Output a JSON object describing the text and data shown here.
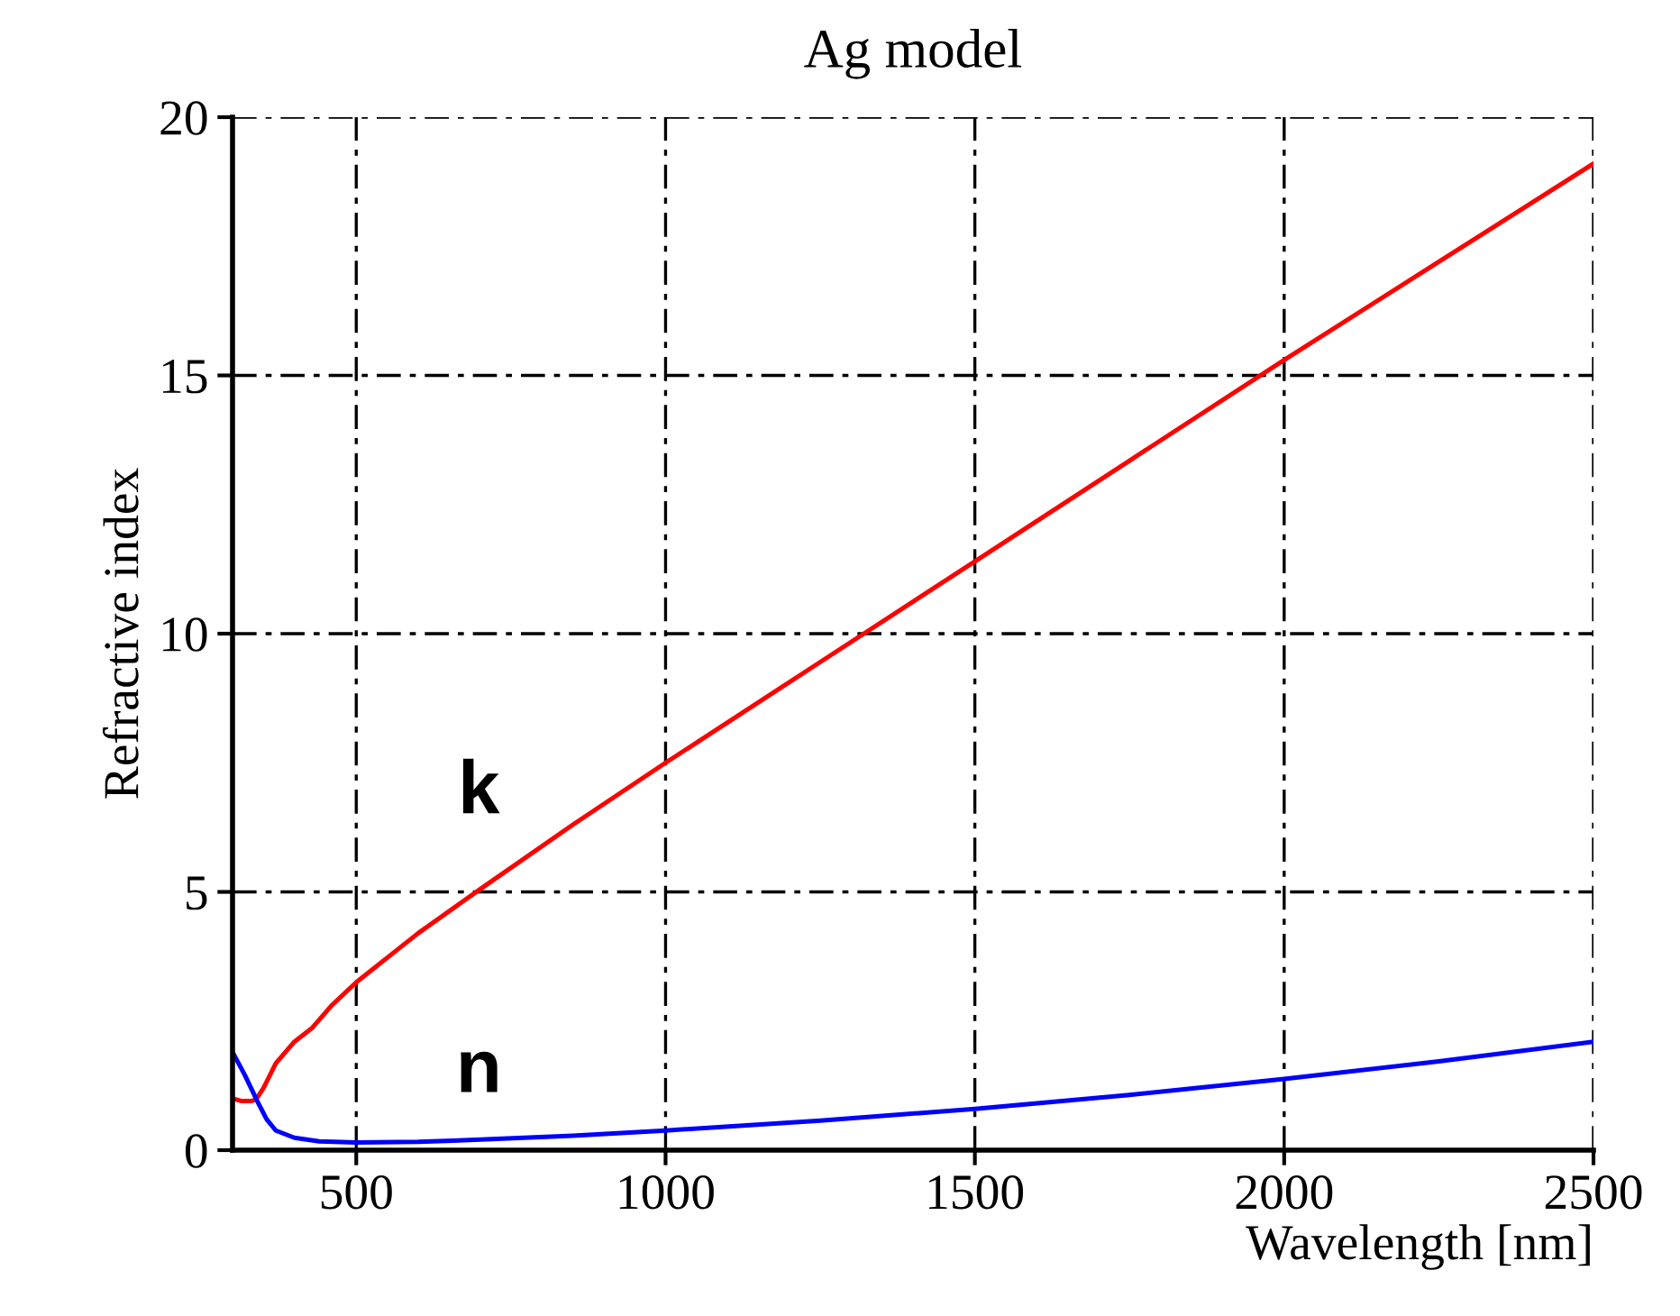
{
  "chart_data": {
    "type": "line",
    "title": "Ag model",
    "xlabel": "Wavelength [nm]",
    "ylabel": "Refractive index",
    "xlim": [
      300,
      2500
    ],
    "ylim": [
      0,
      20
    ],
    "xticks": [
      500,
      1000,
      1500,
      2000,
      2500
    ],
    "yticks": [
      0,
      5,
      10,
      15,
      20
    ],
    "grid": true,
    "series": [
      {
        "name": "k",
        "color": "#ff0000",
        "x": [
          300,
          315,
          330,
          338,
          350,
          370,
          400,
          429,
          460,
          500,
          600,
          700,
          850,
          1000,
          1250,
          1500,
          1750,
          2000,
          2250,
          2500
        ],
        "values": [
          1.0,
          0.95,
          0.95,
          0.98,
          1.2,
          1.68,
          2.1,
          2.37,
          2.8,
          3.25,
          4.2,
          5.05,
          6.3,
          7.5,
          9.45,
          11.4,
          13.35,
          15.3,
          17.2,
          19.1
        ]
      },
      {
        "name": "n",
        "color": "#0000ff",
        "x": [
          300,
          320,
          340,
          355,
          370,
          400,
          440,
          500,
          600,
          692,
          850,
          1000,
          1250,
          1500,
          1750,
          2000,
          2250,
          2500
        ],
        "values": [
          1.9,
          1.45,
          0.95,
          0.6,
          0.38,
          0.24,
          0.17,
          0.15,
          0.16,
          0.2,
          0.28,
          0.38,
          0.57,
          0.8,
          1.07,
          1.38,
          1.72,
          2.1
        ]
      }
    ]
  }
}
